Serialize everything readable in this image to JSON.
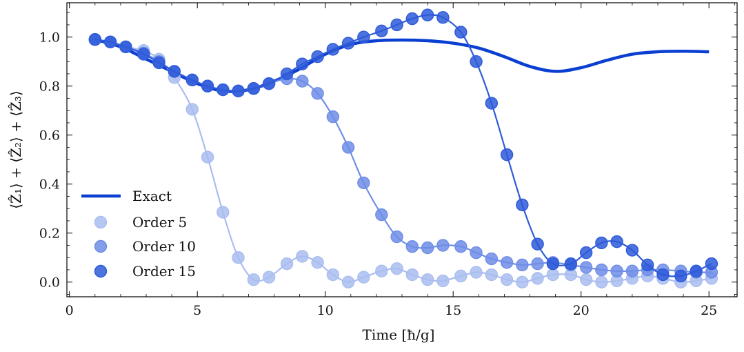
{
  "chart_data": {
    "type": "line",
    "title": "",
    "xlabel": "Time [ħ/g]",
    "ylabel": "⟨Ẑ₁⟩ + ⟨Ẑ₂⟩ + ⟨Ẑ₃⟩",
    "xlim": [
      -0.1,
      26.1
    ],
    "ylim": [
      -0.06,
      1.14
    ],
    "xticks": [
      0,
      5,
      10,
      15,
      20,
      25
    ],
    "xtick_labels": [
      "0",
      "5",
      "10",
      "15",
      "20",
      "25"
    ],
    "yticks": [
      0.0,
      0.2,
      0.4,
      0.6,
      0.8,
      1.0
    ],
    "ytick_labels": [
      "0.0",
      "0.2",
      "0.4",
      "0.6",
      "0.8",
      "1.0"
    ],
    "grid": false,
    "legend_position": "lower-left",
    "exact": {
      "name": "Exact",
      "color": "#0a3fd1",
      "x": [
        1,
        2,
        3,
        4,
        5,
        6,
        7,
        8,
        9,
        10,
        11,
        12,
        13,
        14,
        15,
        16,
        17,
        18,
        19,
        20,
        21,
        22,
        23,
        24,
        25
      ],
      "y": [
        0.99,
        0.96,
        0.91,
        0.86,
        0.81,
        0.78,
        0.785,
        0.82,
        0.87,
        0.93,
        0.97,
        0.985,
        0.988,
        0.985,
        0.975,
        0.955,
        0.92,
        0.88,
        0.86,
        0.875,
        0.905,
        0.93,
        0.94,
        0.942,
        0.94
      ]
    },
    "series": [
      {
        "name": "Order 5",
        "color": "#a9bdf0",
        "x": [
          1.0,
          1.6,
          2.2,
          2.9,
          3.5,
          4.1,
          4.8,
          5.4,
          6.0,
          6.6,
          7.2,
          7.8,
          8.5,
          9.1,
          9.7,
          10.3,
          10.9,
          11.5,
          12.2,
          12.8,
          13.4,
          14.0,
          14.6,
          15.3,
          15.9,
          16.5,
          17.1,
          17.7,
          18.3,
          18.9,
          19.6,
          20.2,
          20.8,
          21.4,
          22.0,
          22.6,
          23.2,
          23.9,
          24.5,
          25.1
        ],
        "values": [
          0.99,
          0.98,
          0.96,
          0.945,
          0.91,
          0.835,
          0.705,
          0.51,
          0.285,
          0.1,
          0.01,
          0.02,
          0.075,
          0.105,
          0.08,
          0.03,
          0.0,
          0.02,
          0.045,
          0.055,
          0.03,
          0.01,
          0.005,
          0.025,
          0.04,
          0.03,
          0.01,
          0.0,
          0.015,
          0.03,
          0.03,
          0.01,
          0.0,
          0.005,
          0.015,
          0.025,
          0.015,
          0.0,
          0.005,
          0.015
        ]
      },
      {
        "name": "Order 10",
        "color": "#6f8de6",
        "x": [
          1.0,
          1.6,
          2.2,
          2.9,
          3.5,
          4.1,
          4.8,
          5.4,
          6.0,
          6.6,
          7.2,
          7.8,
          8.5,
          9.1,
          9.7,
          10.3,
          10.9,
          11.5,
          12.2,
          12.8,
          13.4,
          14.0,
          14.6,
          15.3,
          15.9,
          16.5,
          17.1,
          17.7,
          18.3,
          18.9,
          19.6,
          20.2,
          20.8,
          21.4,
          22.0,
          22.6,
          23.2,
          23.9,
          24.5,
          25.1
        ],
        "values": [
          0.99,
          0.98,
          0.96,
          0.935,
          0.9,
          0.86,
          0.825,
          0.8,
          0.785,
          0.78,
          0.79,
          0.81,
          0.83,
          0.82,
          0.77,
          0.675,
          0.55,
          0.405,
          0.275,
          0.185,
          0.145,
          0.14,
          0.15,
          0.145,
          0.12,
          0.095,
          0.08,
          0.07,
          0.075,
          0.08,
          0.07,
          0.06,
          0.05,
          0.045,
          0.045,
          0.05,
          0.05,
          0.045,
          0.04,
          0.04
        ]
      },
      {
        "name": "Order 15",
        "color": "#2e5ad9",
        "x": [
          1.0,
          1.6,
          2.2,
          2.9,
          3.5,
          4.1,
          4.8,
          5.4,
          6.0,
          6.6,
          7.2,
          7.8,
          8.5,
          9.1,
          9.7,
          10.3,
          10.9,
          11.5,
          12.2,
          12.8,
          13.4,
          14.0,
          14.6,
          15.3,
          15.9,
          16.5,
          17.1,
          17.7,
          18.3,
          18.9,
          19.6,
          20.2,
          20.8,
          21.4,
          22.0,
          22.6,
          23.2,
          23.9,
          24.5,
          25.1
        ],
        "values": [
          0.99,
          0.98,
          0.96,
          0.93,
          0.895,
          0.86,
          0.825,
          0.8,
          0.785,
          0.78,
          0.79,
          0.81,
          0.85,
          0.89,
          0.92,
          0.95,
          0.975,
          1.0,
          1.025,
          1.05,
          1.075,
          1.09,
          1.08,
          1.02,
          0.9,
          0.73,
          0.52,
          0.315,
          0.155,
          0.075,
          0.075,
          0.12,
          0.16,
          0.165,
          0.13,
          0.07,
          0.03,
          0.025,
          0.045,
          0.075
        ]
      }
    ]
  }
}
